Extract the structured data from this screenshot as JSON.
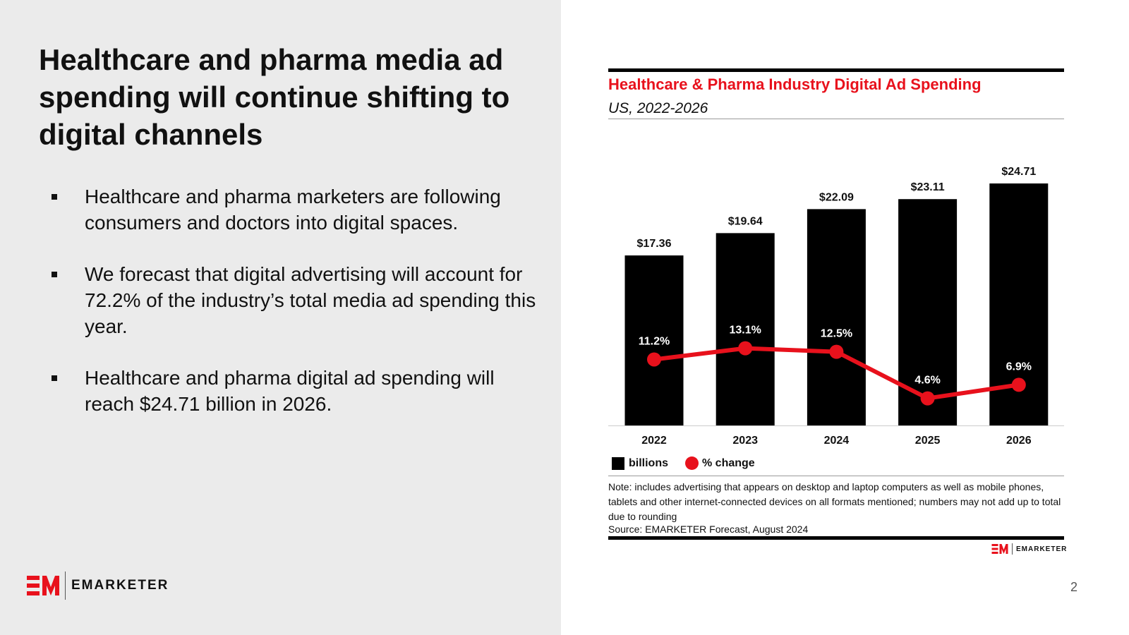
{
  "slide": {
    "title": "Healthcare and pharma media ad spending will continue shifting to digital channels",
    "bullets": [
      "Healthcare and pharma marketers are following consumers and doctors into digital spaces.",
      "We forecast that digital advertising will account for 72.2% of the industry’s total media ad spending this year.",
      "Healthcare and pharma digital ad spending will reach $24.71 billion in 2026."
    ],
    "logo_text": "EMARKETER",
    "page_number": "2"
  },
  "colors": {
    "accent": "#e8111c",
    "bar": "#000000",
    "panel": "#ebebeb"
  },
  "chart_data": {
    "type": "bar",
    "title": "Healthcare & Pharma Industry Digital Ad Spending",
    "subtitle": "US, 2022-2026",
    "categories": [
      "2022",
      "2023",
      "2024",
      "2025",
      "2026"
    ],
    "series": [
      {
        "name": "billions",
        "type": "bar",
        "values": [
          17.36,
          19.64,
          22.09,
          23.11,
          24.71
        ],
        "labels": [
          "$17.36",
          "$19.64",
          "$22.09",
          "$23.11",
          "$24.71"
        ]
      },
      {
        "name": "% change",
        "type": "line",
        "values": [
          11.2,
          13.1,
          12.5,
          4.6,
          6.9
        ],
        "labels": [
          "11.2%",
          "13.1%",
          "12.5%",
          "4.6%",
          "6.9%"
        ]
      }
    ],
    "legend": "bottom-left",
    "grid": false,
    "note": "Note: includes advertising that appears on desktop and laptop computers as well as mobile phones, tablets and other internet-connected devices on all formats mentioned; numbers may not add up to total due to rounding",
    "source": "Source: EMARKETER Forecast, August 2024",
    "logo_text": "EMARKETER"
  }
}
